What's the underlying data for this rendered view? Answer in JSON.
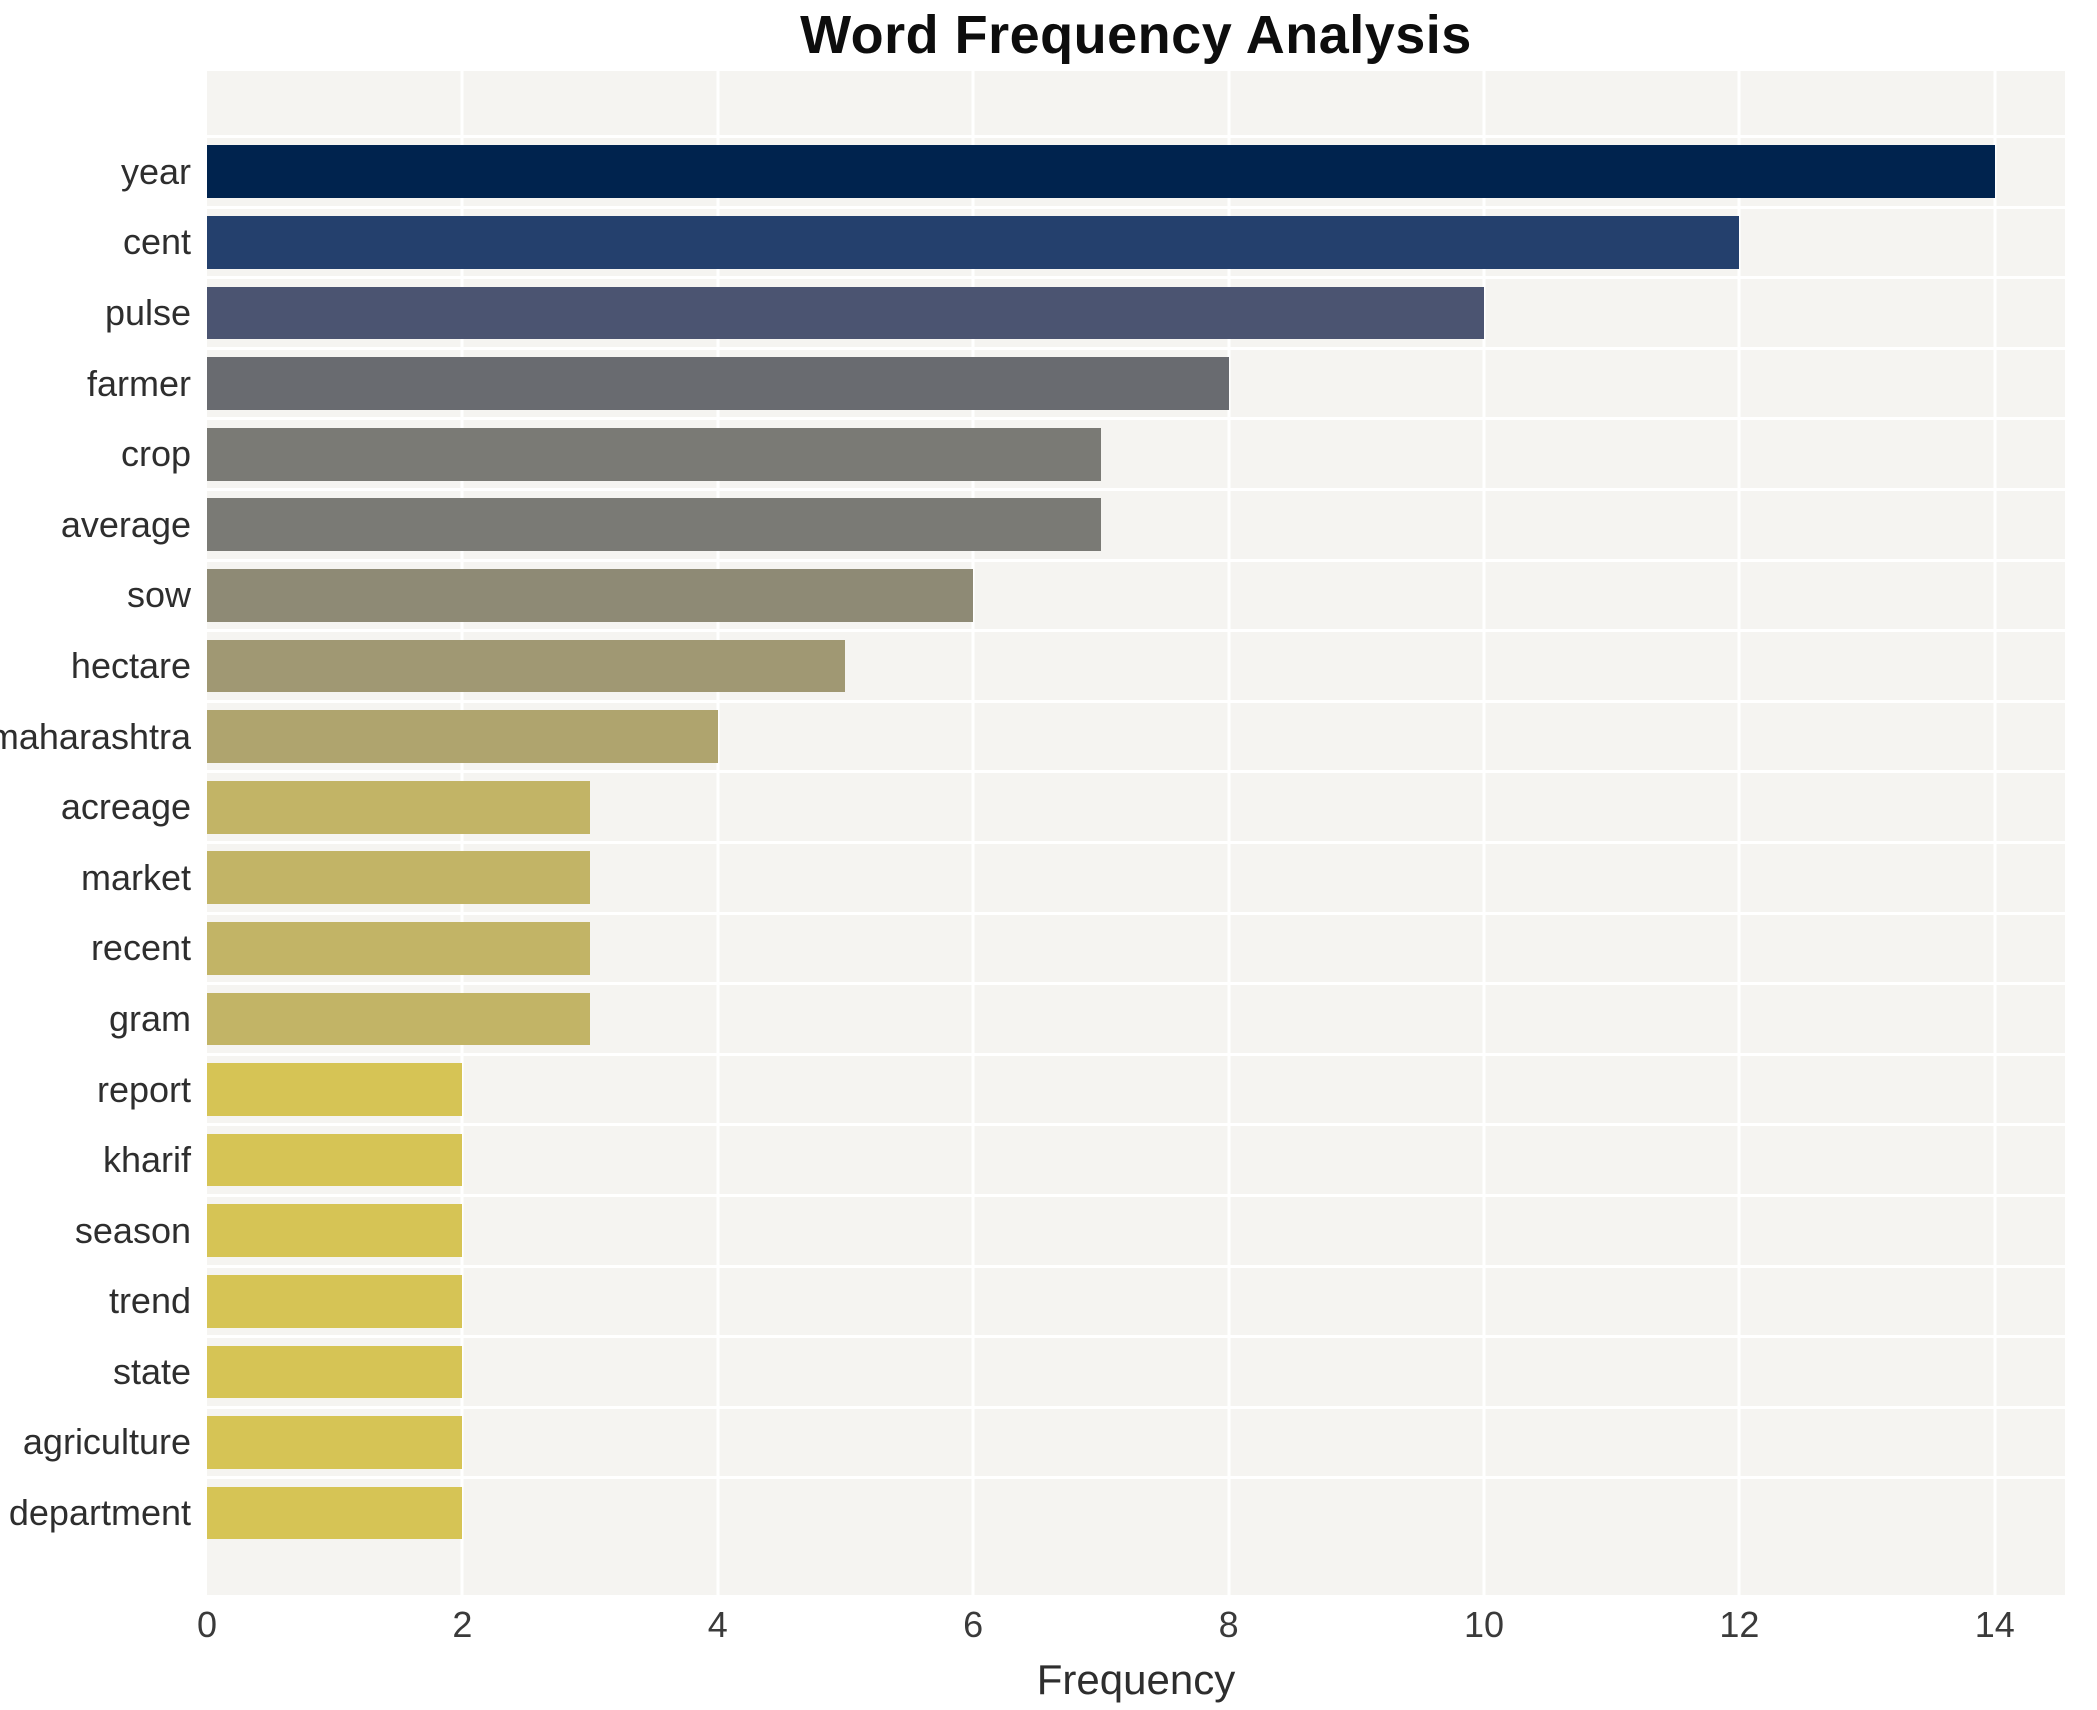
{
  "title": "Word Frequency Analysis",
  "chart_data": {
    "type": "bar",
    "orientation": "horizontal",
    "title": "Word Frequency Analysis",
    "xlabel": "Frequency",
    "ylabel": "",
    "categories": [
      "year",
      "cent",
      "pulse",
      "farmer",
      "crop",
      "average",
      "sow",
      "hectare",
      "maharashtra",
      "acreage",
      "market",
      "recent",
      "gram",
      "report",
      "kharif",
      "season",
      "trend",
      "state",
      "agriculture",
      "department"
    ],
    "values": [
      14,
      12,
      10,
      8,
      7,
      7,
      6,
      5,
      4,
      3,
      3,
      3,
      3,
      2,
      2,
      2,
      2,
      2,
      2,
      2
    ],
    "bar_colors": [
      "#00234e",
      "#24406d",
      "#4b5471",
      "#696b70",
      "#7a7a75",
      "#7a7a75",
      "#8e8a75",
      "#a09873",
      "#afa46e",
      "#c2b466",
      "#c2b466",
      "#c2b466",
      "#c2b466",
      "#d6c455",
      "#d6c455",
      "#d6c455",
      "#d6c455",
      "#d6c455",
      "#d6c455",
      "#d6c455"
    ],
    "xticks": [
      0,
      2,
      4,
      6,
      8,
      10,
      12,
      14
    ],
    "xlim": [
      0,
      14.55
    ],
    "grid": true,
    "legend_position": "none",
    "colors": {
      "plot_background": "#f5f4f1",
      "grid_color": "#ffffff",
      "title_color": "#0d0d0d",
      "tick_label_color": "#3a3a3a",
      "category_label_color": "#2e2e2e"
    }
  }
}
